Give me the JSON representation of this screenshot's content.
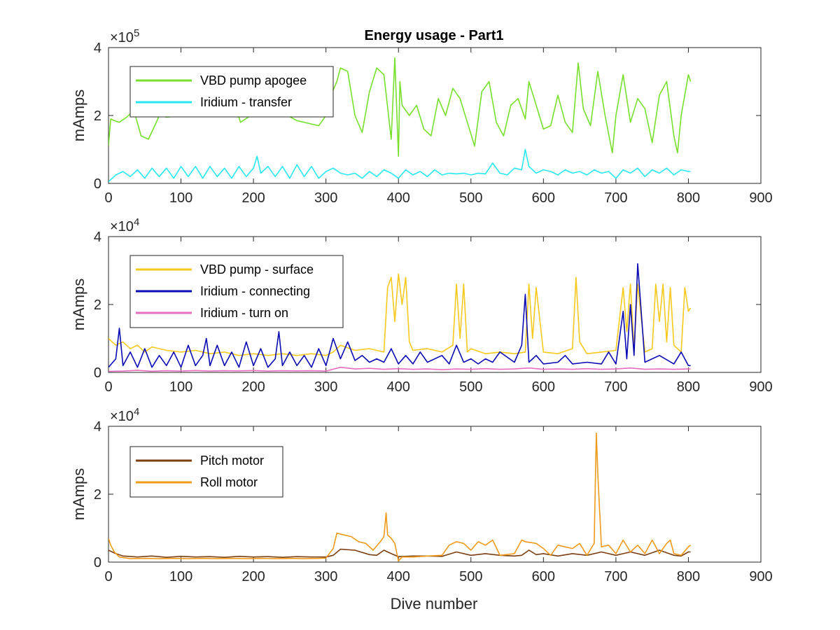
{
  "chart_data": [
    {
      "type": "line",
      "title": "Energy usage - Part1",
      "ylabel": "mAmps",
      "xlabel": "",
      "xlim": [
        0,
        900
      ],
      "ylim": [
        0,
        400000
      ],
      "y_multiplier": "×10",
      "y_exponent": "5",
      "xticks": [
        "0",
        "100",
        "200",
        "300",
        "400",
        "500",
        "600",
        "700",
        "800",
        "900"
      ],
      "yticks": [
        "0",
        "2",
        "4"
      ],
      "legend_position": "top-left",
      "series": [
        {
          "name": "VBD pump apogee",
          "color": "#77e02c",
          "x": [
            0,
            3,
            8,
            15,
            25,
            35,
            45,
            55,
            65,
            70,
            80,
            100,
            130,
            160,
            180,
            182,
            200,
            230,
            260,
            290,
            300,
            305,
            315,
            320,
            330,
            340,
            350,
            360,
            370,
            380,
            390,
            395,
            400,
            402,
            405,
            415,
            425,
            435,
            445,
            455,
            465,
            475,
            485,
            495,
            505,
            515,
            525,
            535,
            545,
            555,
            565,
            575,
            580,
            590,
            600,
            610,
            620,
            630,
            640,
            648,
            655,
            665,
            675,
            685,
            695,
            700,
            710,
            720,
            730,
            740,
            750,
            760,
            770,
            780,
            785,
            790,
            800,
            803
          ],
          "y": [
            110000,
            190000,
            185000,
            180000,
            195000,
            215000,
            140000,
            130000,
            175000,
            200000,
            195000,
            200000,
            210000,
            205000,
            195000,
            180000,
            205000,
            220000,
            185000,
            170000,
            200000,
            250000,
            300000,
            340000,
            330000,
            200000,
            150000,
            270000,
            340000,
            320000,
            130000,
            370000,
            80000,
            300000,
            230000,
            200000,
            230000,
            160000,
            140000,
            250000,
            200000,
            280000,
            250000,
            180000,
            110000,
            270000,
            300000,
            180000,
            140000,
            230000,
            250000,
            190000,
            300000,
            230000,
            160000,
            170000,
            260000,
            180000,
            150000,
            355000,
            220000,
            170000,
            330000,
            200000,
            90000,
            200000,
            320000,
            180000,
            250000,
            220000,
            120000,
            260000,
            300000,
            140000,
            90000,
            200000,
            320000,
            300000
          ]
        },
        {
          "name": "Iridium - transfer",
          "color": "#27e8f0",
          "x": [
            0,
            10,
            20,
            30,
            40,
            50,
            60,
            70,
            80,
            90,
            100,
            110,
            120,
            130,
            140,
            150,
            160,
            170,
            180,
            190,
            200,
            205,
            210,
            220,
            230,
            240,
            250,
            260,
            270,
            280,
            290,
            300,
            310,
            320,
            330,
            340,
            350,
            360,
            370,
            380,
            390,
            400,
            410,
            420,
            430,
            440,
            450,
            460,
            470,
            480,
            490,
            500,
            510,
            520,
            530,
            540,
            550,
            560,
            570,
            575,
            580,
            590,
            600,
            610,
            620,
            630,
            640,
            650,
            660,
            670,
            680,
            690,
            700,
            710,
            720,
            730,
            740,
            750,
            760,
            770,
            780,
            790,
            800,
            803
          ],
          "y": [
            5000,
            25000,
            35000,
            20000,
            40000,
            15000,
            45000,
            20000,
            45000,
            15000,
            50000,
            20000,
            50000,
            15000,
            50000,
            20000,
            45000,
            15000,
            50000,
            20000,
            45000,
            80000,
            30000,
            50000,
            20000,
            50000,
            15000,
            55000,
            20000,
            50000,
            15000,
            35000,
            45000,
            30000,
            25000,
            30000,
            15000,
            35000,
            20000,
            40000,
            30000,
            15000,
            40000,
            25000,
            35000,
            20000,
            40000,
            25000,
            30000,
            28000,
            30000,
            25000,
            30000,
            28000,
            60000,
            30000,
            25000,
            45000,
            40000,
            100000,
            50000,
            30000,
            40000,
            35000,
            25000,
            40000,
            30000,
            35000,
            25000,
            40000,
            30000,
            35000,
            15000,
            40000,
            30000,
            45000,
            20000,
            40000,
            30000,
            45000,
            25000,
            40000,
            35000,
            35000
          ]
        }
      ]
    },
    {
      "type": "line",
      "title": "",
      "ylabel": "mAmps",
      "xlabel": "",
      "xlim": [
        0,
        900
      ],
      "ylim": [
        0,
        40000
      ],
      "y_multiplier": "×10",
      "y_exponent": "4",
      "xticks": [
        "0",
        "100",
        "200",
        "300",
        "400",
        "500",
        "600",
        "700",
        "800",
        "900"
      ],
      "yticks": [
        "0",
        "2",
        "4"
      ],
      "legend_position": "top-left",
      "series": [
        {
          "name": "VBD pump - surface",
          "color": "#f7c91c",
          "x": [
            0,
            5,
            10,
            20,
            30,
            40,
            50,
            60,
            80,
            100,
            120,
            140,
            160,
            180,
            200,
            220,
            240,
            260,
            280,
            300,
            310,
            320,
            340,
            360,
            380,
            385,
            390,
            395,
            400,
            405,
            410,
            415,
            420,
            440,
            460,
            475,
            480,
            485,
            490,
            495,
            500,
            520,
            540,
            560,
            575,
            580,
            585,
            590,
            600,
            620,
            640,
            645,
            650,
            660,
            680,
            700,
            710,
            715,
            720,
            725,
            730,
            740,
            750,
            755,
            760,
            765,
            770,
            775,
            780,
            790,
            795,
            800,
            803
          ],
          "y": [
            10000,
            9000,
            8000,
            9000,
            7000,
            8000,
            6000,
            7500,
            6500,
            6000,
            6500,
            5500,
            6000,
            5000,
            5500,
            5000,
            5500,
            5000,
            5500,
            5000,
            6000,
            8000,
            6500,
            7000,
            6000,
            25000,
            28000,
            15000,
            29000,
            20000,
            28000,
            9000,
            6500,
            7000,
            6000,
            8000,
            26000,
            10000,
            26000,
            6000,
            7000,
            5500,
            6000,
            5500,
            6000,
            26000,
            10000,
            25000,
            6000,
            5500,
            7000,
            28000,
            9000,
            5500,
            6000,
            6500,
            25000,
            12000,
            26000,
            7000,
            26000,
            6000,
            7000,
            26000,
            15000,
            26000,
            9000,
            25000,
            8000,
            6000,
            25000,
            18000,
            19000
          ]
        },
        {
          "name": "Iridium - connecting",
          "color": "#0a0ab4",
          "x": [
            0,
            10,
            15,
            20,
            30,
            40,
            50,
            60,
            70,
            80,
            90,
            100,
            110,
            120,
            130,
            135,
            140,
            150,
            160,
            170,
            180,
            190,
            200,
            210,
            220,
            230,
            235,
            240,
            250,
            260,
            270,
            280,
            290,
            300,
            310,
            320,
            330,
            340,
            350,
            360,
            370,
            380,
            390,
            400,
            410,
            420,
            430,
            440,
            460,
            470,
            480,
            490,
            500,
            510,
            520,
            530,
            540,
            560,
            570,
            575,
            580,
            590,
            600,
            620,
            630,
            640,
            660,
            680,
            690,
            700,
            710,
            715,
            720,
            725,
            730,
            740,
            760,
            780,
            790,
            800,
            803
          ],
          "y": [
            1500,
            4000,
            13000,
            2000,
            6000,
            1500,
            7000,
            1500,
            5000,
            2000,
            6000,
            1500,
            8000,
            2000,
            5000,
            10000,
            2000,
            8000,
            2000,
            6000,
            1500,
            9000,
            2000,
            7000,
            1500,
            4000,
            12000,
            2000,
            6000,
            2000,
            5000,
            1500,
            7000,
            2000,
            10000,
            4000,
            9000,
            3500,
            5000,
            3000,
            4000,
            3000,
            7000,
            2500,
            5000,
            2500,
            6000,
            3000,
            5000,
            2500,
            8000,
            3000,
            4000,
            2500,
            4000,
            3000,
            6000,
            3000,
            8000,
            23000,
            3000,
            5000,
            2500,
            3000,
            5000,
            2500,
            3000,
            2500,
            6000,
            2500,
            18000,
            4000,
            20000,
            5000,
            32000,
            3000,
            5000,
            2500,
            6000,
            2000,
            2000
          ]
        },
        {
          "name": "Iridium - turn on",
          "color": "#e86cc0",
          "x": [
            0,
            20,
            40,
            60,
            80,
            100,
            120,
            140,
            160,
            180,
            200,
            220,
            240,
            260,
            280,
            300,
            320,
            340,
            360,
            380,
            400,
            420,
            440,
            460,
            480,
            500,
            520,
            540,
            560,
            580,
            600,
            620,
            640,
            660,
            680,
            700,
            720,
            740,
            760,
            780,
            803
          ],
          "y": [
            300,
            400,
            600,
            350,
            500,
            400,
            550,
            400,
            500,
            450,
            550,
            400,
            500,
            450,
            500,
            400,
            1500,
            1000,
            1200,
            900,
            1100,
            900,
            1000,
            800,
            1000,
            900,
            1100,
            900,
            1000,
            1300,
            900,
            1000,
            900,
            1100,
            900,
            1000,
            1300,
            900,
            1000,
            900,
            1000
          ]
        }
      ]
    },
    {
      "type": "line",
      "title": "",
      "ylabel": "mAmps",
      "xlabel": "Dive number",
      "xlim": [
        0,
        900
      ],
      "ylim": [
        0,
        40000
      ],
      "y_multiplier": "×10",
      "y_exponent": "4",
      "xticks": [
        "0",
        "100",
        "200",
        "300",
        "400",
        "500",
        "600",
        "700",
        "800",
        "900"
      ],
      "yticks": [
        "0",
        "2",
        "4"
      ],
      "legend_position": "top-left",
      "series": [
        {
          "name": "Pitch motor",
          "color": "#7b3f12",
          "x": [
            0,
            5,
            10,
            20,
            40,
            60,
            80,
            100,
            120,
            140,
            160,
            180,
            200,
            220,
            240,
            260,
            280,
            290,
            300,
            310,
            320,
            340,
            360,
            370,
            380,
            390,
            400,
            420,
            440,
            460,
            480,
            500,
            520,
            540,
            560,
            570,
            580,
            590,
            600,
            620,
            640,
            660,
            680,
            700,
            720,
            740,
            760,
            780,
            790,
            800,
            803
          ],
          "y": [
            3500,
            3000,
            2500,
            1800,
            1500,
            1800,
            1400,
            1700,
            1500,
            1600,
            1400,
            1700,
            1500,
            1600,
            1400,
            1600,
            1500,
            1500,
            1500,
            2000,
            3800,
            3500,
            2200,
            2000,
            3500,
            2500,
            1600,
            1800,
            1800,
            1700,
            3000,
            2000,
            2500,
            2000,
            1800,
            2000,
            3500,
            2200,
            2500,
            1800,
            2500,
            2000,
            3000,
            2000,
            3000,
            2000,
            3500,
            2000,
            1800,
            3000,
            3000
          ]
        },
        {
          "name": "Roll motor",
          "color": "#f09a1a",
          "x": [
            0,
            3,
            8,
            15,
            30,
            50,
            70,
            90,
            110,
            130,
            150,
            170,
            190,
            210,
            230,
            250,
            270,
            290,
            300,
            310,
            315,
            325,
            335,
            345,
            355,
            365,
            375,
            380,
            383,
            385,
            390,
            395,
            400,
            405,
            420,
            440,
            460,
            470,
            480,
            490,
            500,
            510,
            520,
            530,
            540,
            560,
            570,
            575,
            590,
            600,
            610,
            620,
            630,
            640,
            650,
            660,
            670,
            673,
            675,
            680,
            690,
            700,
            710,
            720,
            730,
            740,
            750,
            760,
            770,
            775,
            780,
            790,
            800,
            803
          ],
          "y": [
            7000,
            5000,
            3000,
            1500,
            1000,
            1100,
            1000,
            1100,
            1000,
            1100,
            1000,
            1100,
            1000,
            1100,
            1000,
            1100,
            1000,
            1100,
            1200,
            4000,
            8500,
            8000,
            7500,
            6000,
            5500,
            3500,
            6000,
            7500,
            14500,
            8000,
            7000,
            5500,
            300,
            1500,
            1500,
            1800,
            2000,
            5000,
            6000,
            5500,
            3500,
            6000,
            5000,
            6500,
            2000,
            2500,
            6500,
            6000,
            5500,
            4000,
            2000,
            5000,
            4500,
            4000,
            5500,
            2000,
            5500,
            38000,
            26000,
            4500,
            5000,
            2500,
            6500,
            3000,
            5000,
            2500,
            6500,
            2500,
            5500,
            6500,
            2500,
            2000,
            4500,
            5000
          ]
        }
      ]
    }
  ]
}
